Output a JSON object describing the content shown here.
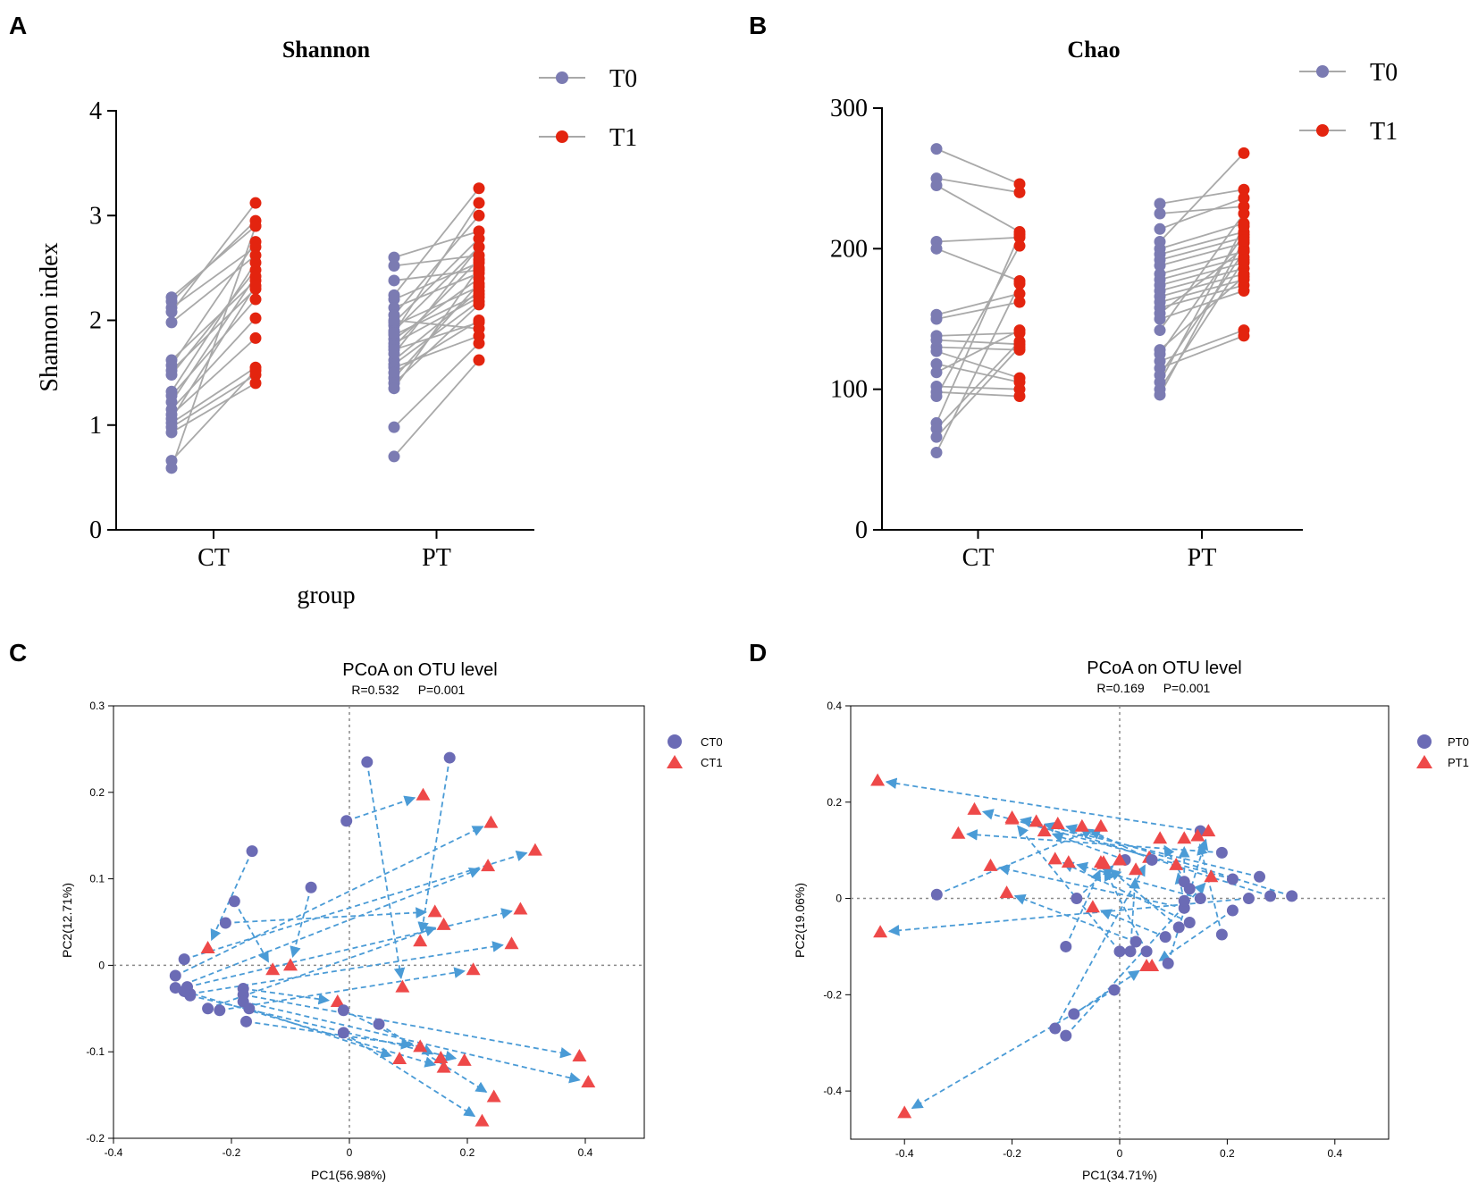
{
  "colors": {
    "t0": "#7b7bb2",
    "t1": "#e3240f",
    "line": "#a9a9a9",
    "axis": "#000000",
    "arrow": "#4a9bd6",
    "pcoa_circle": "#6b6bb5",
    "pcoa_triangle": "#ee4949",
    "zero_line": "#8a8a8a"
  },
  "panel_labels": [
    "A",
    "B",
    "C",
    "D"
  ],
  "chart_data": [
    {
      "id": "A",
      "type": "scatter",
      "subtype": "paired-dot",
      "title": "Shannon",
      "ylabel": "Shannon index",
      "xlabel": "group",
      "categories": [
        "CT",
        "PT"
      ],
      "ylim": [
        0,
        4
      ],
      "yticks": [
        "0",
        "1",
        "2",
        "3",
        "4"
      ],
      "legend": [
        "T0",
        "T1"
      ],
      "series": [
        {
          "name": "CT",
          "pairs": [
            [
              2.22,
              2.9
            ],
            [
              2.18,
              2.95
            ],
            [
              2.12,
              2.7
            ],
            [
              2.08,
              3.12
            ],
            [
              1.98,
              2.62
            ],
            [
              1.62,
              2.38
            ],
            [
              1.57,
              2.75
            ],
            [
              1.52,
              2.3
            ],
            [
              1.48,
              2.48
            ],
            [
              1.32,
              2.55
            ],
            [
              1.28,
              2.2
            ],
            [
              1.22,
              2.42
            ],
            [
              1.15,
              2.02
            ],
            [
              1.1,
              1.83
            ],
            [
              1.06,
              2.33
            ],
            [
              1.02,
              1.55
            ],
            [
              0.98,
              1.48
            ],
            [
              0.93,
              1.4
            ],
            [
              0.66,
              1.52
            ],
            [
              0.59,
              2.9
            ]
          ]
        },
        {
          "name": "PT",
          "pairs": [
            [
              2.6,
              2.85
            ],
            [
              2.52,
              2.62
            ],
            [
              2.38,
              2.48
            ],
            [
              2.24,
              3.26
            ],
            [
              2.2,
              2.55
            ],
            [
              2.12,
              2.45
            ],
            [
              2.05,
              3.0
            ],
            [
              1.98,
              2.78
            ],
            [
              1.95,
              2.32
            ],
            [
              1.9,
              2.7
            ],
            [
              1.86,
              2.25
            ],
            [
              1.82,
              2.4
            ],
            [
              1.78,
              2.22
            ],
            [
              1.75,
              2.58
            ],
            [
              1.72,
              1.98
            ],
            [
              1.68,
              2.7
            ],
            [
              1.62,
              2.28
            ],
            [
              1.58,
              2.18
            ],
            [
              1.55,
              1.85
            ],
            [
              1.5,
              2.0
            ],
            [
              1.45,
              2.35
            ],
            [
              1.4,
              2.15
            ],
            [
              1.35,
              2.5
            ],
            [
              0.98,
              1.78
            ],
            [
              0.7,
              1.62
            ],
            [
              1.88,
              3.12
            ],
            [
              2.0,
              1.92
            ]
          ]
        }
      ]
    },
    {
      "id": "B",
      "type": "scatter",
      "subtype": "paired-dot",
      "title": "Chao",
      "categories": [
        "CT",
        "PT"
      ],
      "ylim": [
        0,
        300
      ],
      "yticks": [
        "0",
        "100",
        "200",
        "300"
      ],
      "legend": [
        "T0",
        "T1"
      ],
      "series": [
        {
          "name": "CT",
          "pairs": [
            [
              271,
              246
            ],
            [
              250,
              240
            ],
            [
              245,
              212
            ],
            [
              205,
              208
            ],
            [
              200,
              177
            ],
            [
              153,
              168
            ],
            [
              150,
              162
            ],
            [
              138,
              140
            ],
            [
              135,
              132
            ],
            [
              130,
              128
            ],
            [
              127,
              108
            ],
            [
              118,
              105
            ],
            [
              102,
              100
            ],
            [
              98,
              95
            ],
            [
              95,
              202
            ],
            [
              76,
              210
            ],
            [
              72,
              134
            ],
            [
              66,
              130
            ],
            [
              55,
              175
            ],
            [
              112,
              142
            ]
          ]
        },
        {
          "name": "PT",
          "pairs": [
            [
              232,
              242
            ],
            [
              225,
              230
            ],
            [
              214,
              236
            ],
            [
              205,
              268
            ],
            [
              200,
              218
            ],
            [
              196,
              212
            ],
            [
              192,
              208
            ],
            [
              188,
              204
            ],
            [
              182,
              198
            ],
            [
              178,
              194
            ],
            [
              174,
              190
            ],
            [
              170,
              186
            ],
            [
              166,
              182
            ],
            [
              162,
              178
            ],
            [
              158,
              174
            ],
            [
              154,
              200
            ],
            [
              150,
              170
            ],
            [
              125,
              210
            ],
            [
              120,
              142
            ],
            [
              115,
              138
            ],
            [
              110,
              198
            ],
            [
              105,
              216
            ],
            [
              100,
              192
            ],
            [
              96,
              206
            ],
            [
              128,
              180
            ],
            [
              142,
              225
            ]
          ]
        }
      ]
    },
    {
      "id": "C",
      "type": "scatter",
      "subtype": "pcoa",
      "title": "PCoA on OTU level",
      "stats": [
        "R=0.532",
        "P=0.001"
      ],
      "xlabel": "PC1(56.98%)",
      "ylabel": "PC2(12.71%)",
      "xlim": [
        -0.4,
        0.5
      ],
      "ylim": [
        -0.2,
        0.3
      ],
      "xticks": [
        "-0.4",
        "-0.2",
        "0",
        "0.2",
        "0.4"
      ],
      "yticks": [
        "-0.2",
        "-0.1",
        "0",
        "0.1",
        "0.2",
        "0.3"
      ],
      "legend": [
        "CT0",
        "CT1"
      ],
      "arrows": [
        [
          [
            0.03,
            0.235
          ],
          [
            0.09,
            -0.025
          ]
        ],
        [
          [
            0.17,
            0.24
          ],
          [
            0.12,
            0.028
          ]
        ],
        [
          [
            -0.005,
            0.167
          ],
          [
            0.125,
            0.197
          ]
        ],
        [
          [
            -0.165,
            0.132
          ],
          [
            -0.24,
            0.02
          ]
        ],
        [
          [
            -0.065,
            0.09
          ],
          [
            -0.1,
            0.0
          ]
        ],
        [
          [
            -0.195,
            0.074
          ],
          [
            -0.13,
            -0.005
          ]
        ],
        [
          [
            -0.21,
            0.049
          ],
          [
            0.145,
            0.062
          ]
        ],
        [
          [
            -0.28,
            0.007
          ],
          [
            0.315,
            0.133
          ]
        ],
        [
          [
            -0.295,
            -0.012
          ],
          [
            0.24,
            0.165
          ]
        ],
        [
          [
            -0.295,
            -0.026
          ],
          [
            0.235,
            0.115
          ]
        ],
        [
          [
            -0.275,
            -0.025
          ],
          [
            0.29,
            0.065
          ]
        ],
        [
          [
            -0.27,
            -0.033
          ],
          [
            0.275,
            0.025
          ]
        ],
        [
          [
            -0.24,
            -0.05
          ],
          [
            0.16,
            0.047
          ]
        ],
        [
          [
            -0.22,
            -0.052
          ],
          [
            0.21,
            -0.005
          ]
        ],
        [
          [
            -0.18,
            -0.027
          ],
          [
            -0.02,
            -0.042
          ]
        ],
        [
          [
            -0.18,
            -0.034
          ],
          [
            0.39,
            -0.105
          ]
        ],
        [
          [
            -0.18,
            -0.042
          ],
          [
            0.405,
            -0.135
          ]
        ],
        [
          [
            -0.175,
            -0.065
          ],
          [
            0.12,
            -0.094
          ]
        ],
        [
          [
            -0.17,
            -0.05
          ],
          [
            0.085,
            -0.108
          ]
        ],
        [
          [
            -0.01,
            -0.052
          ],
          [
            0.155,
            -0.107
          ]
        ],
        [
          [
            -0.01,
            -0.078
          ],
          [
            0.225,
            -0.18
          ]
        ],
        [
          [
            0.05,
            -0.068
          ],
          [
            0.245,
            -0.152
          ]
        ],
        [
          [
            -0.27,
            -0.035
          ],
          [
            0.195,
            -0.11
          ]
        ],
        [
          [
            -0.28,
            -0.03
          ],
          [
            0.16,
            -0.118
          ]
        ]
      ]
    },
    {
      "id": "D",
      "type": "scatter",
      "subtype": "pcoa",
      "title": "PCoA on OTU level",
      "stats": [
        "R=0.169",
        "P=0.001"
      ],
      "xlabel": "PC1(34.71%)",
      "ylabel": "PC2(19.06%)",
      "xlim": [
        -0.5,
        0.5
      ],
      "ylim": [
        -0.5,
        0.4
      ],
      "xticks": [
        "-0.4",
        "-0.2",
        "0",
        "0.2",
        "0.4"
      ],
      "yticks": [
        "-0.4",
        "-0.2",
        "0",
        "0.2",
        "0.4"
      ],
      "legend": [
        "PT0",
        "PT1"
      ],
      "arrows": [
        [
          [
            0.15,
            0.14
          ],
          [
            -0.45,
            0.245
          ]
        ],
        [
          [
            0.19,
            0.095
          ],
          [
            -0.3,
            0.135
          ]
        ],
        [
          [
            0.21,
            0.04
          ],
          [
            -0.27,
            0.185
          ]
        ],
        [
          [
            0.26,
            0.045
          ],
          [
            -0.2,
            0.168
          ]
        ],
        [
          [
            0.28,
            0.005
          ],
          [
            -0.155,
            0.16
          ]
        ],
        [
          [
            0.32,
            0.005
          ],
          [
            -0.115,
            0.155
          ]
        ],
        [
          [
            0.01,
            0.08
          ],
          [
            -0.14,
            0.14
          ]
        ],
        [
          [
            -0.34,
            0.008
          ],
          [
            -0.035,
            0.15
          ]
        ],
        [
          [
            0.24,
            0.0
          ],
          [
            -0.445,
            -0.07
          ]
        ],
        [
          [
            0.13,
            -0.05
          ],
          [
            -0.12,
            0.082
          ]
        ],
        [
          [
            0.12,
            -0.02
          ],
          [
            -0.24,
            0.068
          ]
        ],
        [
          [
            0.12,
            0.035
          ],
          [
            0.12,
            0.125
          ]
        ],
        [
          [
            0.13,
            0.02
          ],
          [
            0.075,
            0.125
          ]
        ],
        [
          [
            0.085,
            -0.08
          ],
          [
            -0.05,
            -0.018
          ]
        ],
        [
          [
            -0.01,
            -0.19
          ],
          [
            -0.4,
            -0.445
          ]
        ],
        [
          [
            -0.12,
            -0.27
          ],
          [
            0.055,
            0.085
          ]
        ],
        [
          [
            -0.085,
            -0.24
          ],
          [
            0.05,
            -0.14
          ]
        ],
        [
          [
            0.03,
            -0.09
          ],
          [
            -0.21,
            0.012
          ]
        ],
        [
          [
            0.05,
            -0.11
          ],
          [
            -0.035,
            0.075
          ]
        ],
        [
          [
            0.09,
            -0.135
          ],
          [
            0.165,
            0.14
          ]
        ],
        [
          [
            0.11,
            -0.06
          ],
          [
            -0.03,
            0.072
          ]
        ],
        [
          [
            -0.1,
            -0.285
          ],
          [
            0.17,
            0.045
          ]
        ],
        [
          [
            0.02,
            -0.11
          ],
          [
            0.03,
            0.06
          ]
        ],
        [
          [
            0.12,
            -0.005
          ],
          [
            0.105,
            0.07
          ]
        ],
        [
          [
            0.06,
            0.08
          ],
          [
            -0.07,
            0.15
          ]
        ],
        [
          [
            0.19,
            -0.075
          ],
          [
            0.145,
            0.13
          ]
        ],
        [
          [
            0.15,
            0.0
          ],
          [
            -0.095,
            0.075
          ]
        ],
        [
          [
            -0.1,
            -0.1
          ],
          [
            -0.03,
            0.075
          ]
        ],
        [
          [
            0.0,
            -0.11
          ],
          [
            -0.2,
            0.165
          ]
        ],
        [
          [
            0.21,
            -0.025
          ],
          [
            0.06,
            -0.14
          ]
        ],
        [
          [
            -0.08,
            0.0
          ],
          [
            0.0,
            0.08
          ]
        ]
      ]
    }
  ]
}
